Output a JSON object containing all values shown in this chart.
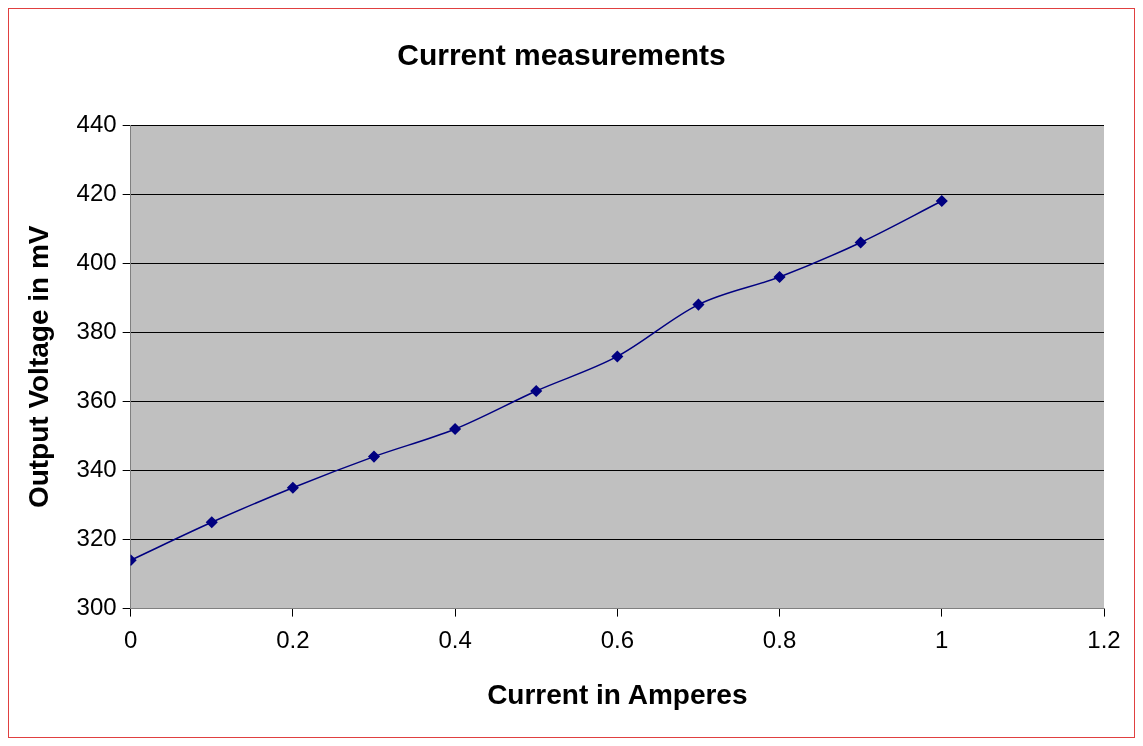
{
  "chart_data": {
    "type": "line",
    "title": "Current measurements",
    "xlabel": "Current in Amperes",
    "ylabel": "Output Voltage in mV",
    "x": [
      0,
      0.1,
      0.2,
      0.3,
      0.4,
      0.5,
      0.6,
      0.7,
      0.8,
      0.9,
      1
    ],
    "series": [
      {
        "color": "#000080",
        "values": [
          314,
          325,
          335,
          344,
          352,
          363,
          373,
          388,
          396,
          406,
          418
        ]
      }
    ],
    "xlim": [
      0,
      1.2
    ],
    "xticks": [
      0,
      0.2,
      0.4,
      0.6,
      0.8,
      1,
      1.2
    ],
    "ylim": [
      300,
      440
    ],
    "yticks": [
      300,
      320,
      340,
      360,
      380,
      400,
      420,
      440
    ],
    "grid": "y",
    "legend": false,
    "marker": "diamond",
    "line_style": "solid"
  }
}
